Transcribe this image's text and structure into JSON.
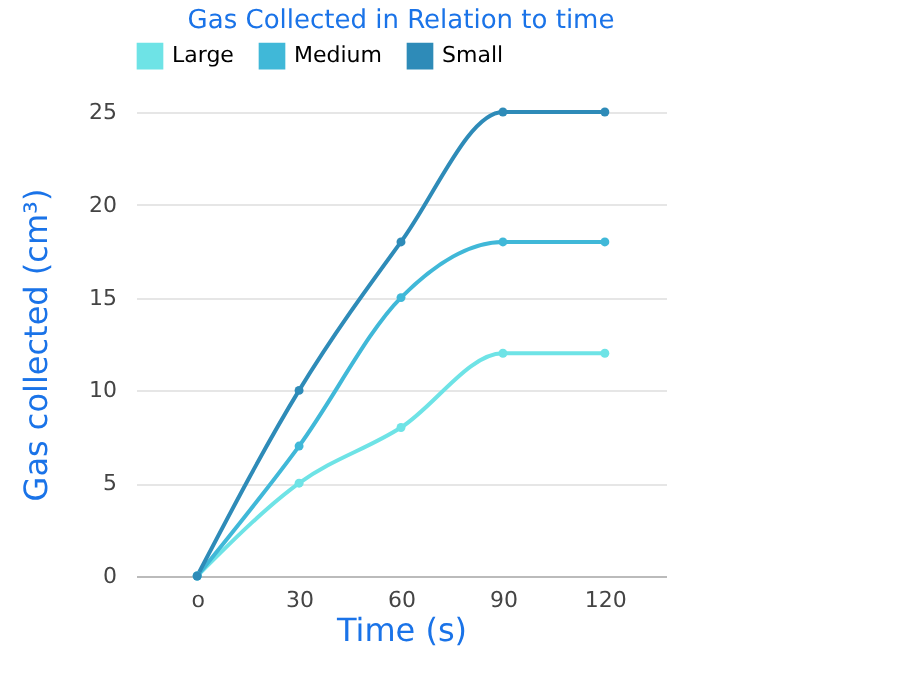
{
  "chart_data": {
    "type": "line",
    "title": "Gas Collected in Relation to time",
    "xlabel": "Time (s)",
    "ylabel": "Gas collected (cm³)",
    "categories": [
      "o",
      "30",
      "60",
      "90",
      "120"
    ],
    "series": [
      {
        "name": "Large",
        "color": "#6ee3e6",
        "values": [
          0,
          5,
          8,
          12,
          12
        ]
      },
      {
        "name": "Medium",
        "color": "#40b8d8",
        "values": [
          0,
          7,
          15,
          18,
          18
        ]
      },
      {
        "name": "Small",
        "color": "#2e8bb8",
        "values": [
          0,
          10,
          18,
          25,
          25
        ]
      }
    ],
    "ylim": [
      0,
      25
    ],
    "yticks": [
      0,
      5,
      10,
      15,
      20,
      25
    ],
    "grid": "y",
    "legend": "top",
    "marker": "circle"
  }
}
